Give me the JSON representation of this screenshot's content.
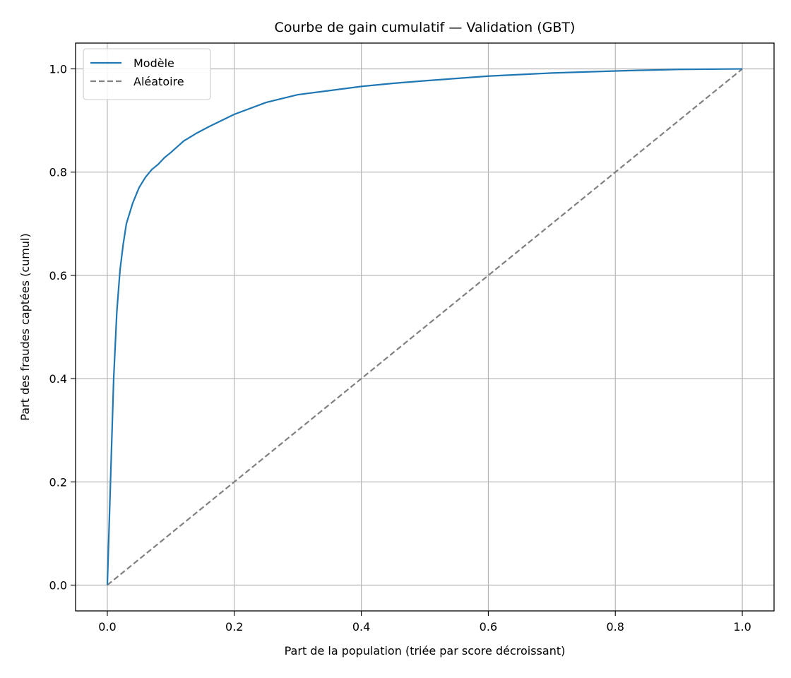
{
  "chart_data": {
    "type": "line",
    "title": "Courbe de gain cumulatif — Validation (GBT)",
    "xlabel": "Part de la population (triée par score décroissant)",
    "ylabel": "Part des fraudes captées (cumul)",
    "xlim": [
      -0.05,
      1.05
    ],
    "ylim": [
      -0.05,
      1.05
    ],
    "xticks": [
      0.0,
      0.2,
      0.4,
      0.6,
      0.8,
      1.0
    ],
    "yticks": [
      0.0,
      0.2,
      0.4,
      0.6,
      0.8,
      1.0
    ],
    "xtick_labels": [
      "0.0",
      "0.2",
      "0.4",
      "0.6",
      "0.8",
      "1.0"
    ],
    "ytick_labels": [
      "0.0",
      "0.2",
      "0.4",
      "0.6",
      "0.8",
      "1.0"
    ],
    "grid": true,
    "legend_position": "top-left",
    "series": [
      {
        "name": "Modèle",
        "color": "#1f77b4",
        "style": "solid",
        "x": [
          0.0,
          0.005,
          0.01,
          0.015,
          0.02,
          0.025,
          0.03,
          0.035,
          0.04,
          0.05,
          0.06,
          0.07,
          0.08,
          0.09,
          0.1,
          0.12,
          0.14,
          0.16,
          0.18,
          0.2,
          0.25,
          0.3,
          0.35,
          0.4,
          0.45,
          0.5,
          0.6,
          0.7,
          0.8,
          0.9,
          1.0
        ],
        "y": [
          0.0,
          0.2,
          0.4,
          0.53,
          0.61,
          0.66,
          0.7,
          0.72,
          0.74,
          0.77,
          0.79,
          0.805,
          0.815,
          0.828,
          0.838,
          0.86,
          0.875,
          0.888,
          0.9,
          0.912,
          0.935,
          0.95,
          0.958,
          0.966,
          0.972,
          0.977,
          0.986,
          0.992,
          0.996,
          0.999,
          1.0
        ]
      },
      {
        "name": "Aléatoire",
        "color": "#808080",
        "style": "dashed",
        "x": [
          0.0,
          1.0
        ],
        "y": [
          0.0,
          1.0
        ]
      }
    ]
  }
}
